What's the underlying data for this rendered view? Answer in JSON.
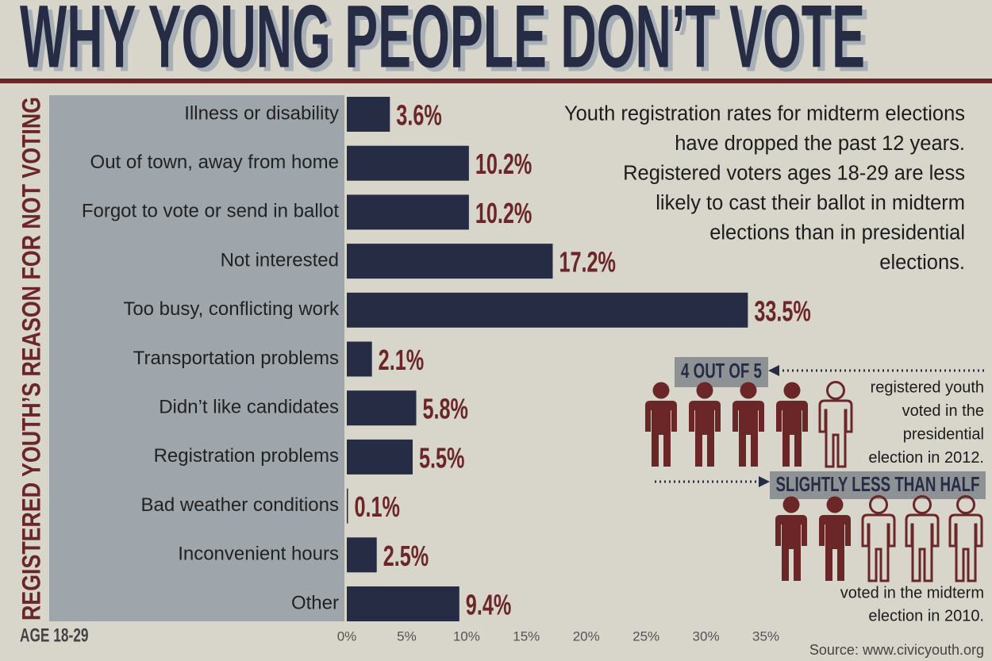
{
  "chart_data": {
    "type": "bar",
    "orientation": "horizontal",
    "title": "WHY YOUNG PEOPLE DON’T VOTE",
    "ylabel": "REGISTERED YOUTH’S REASON FOR NOT VOTING",
    "note": "AGE 18-29",
    "categories": [
      "Illness or disability",
      "Out of town, away from home",
      "Forgot to vote or send in ballot",
      "Not interested",
      "Too busy, conflicting work",
      "Transportation problems",
      "Didn’t like candidates",
      "Registration problems",
      "Bad weather conditions",
      "Inconvenient hours",
      "Other"
    ],
    "values": [
      3.6,
      10.2,
      10.2,
      17.2,
      33.5,
      2.1,
      5.8,
      5.5,
      0.1,
      2.5,
      9.4
    ],
    "value_labels": [
      "3.6%",
      "10.2%",
      "10.2%",
      "17.2%",
      "33.5%",
      "2.1%",
      "5.8%",
      "5.5%",
      "0.1%",
      "2.5%",
      "9.4%"
    ],
    "color": "#262c44",
    "label_color": "#6b2628",
    "xlim": [
      0,
      35
    ],
    "xticks": [
      {
        "value": 0,
        "label": "0%"
      },
      {
        "value": 5,
        "label": "5%"
      },
      {
        "value": 10,
        "label": "10%"
      },
      {
        "value": 15,
        "label": "15%"
      },
      {
        "value": 20,
        "label": "20%"
      },
      {
        "value": 25,
        "label": "25%"
      },
      {
        "value": 30,
        "label": "30%"
      },
      {
        "value": 35,
        "label": "35%"
      }
    ],
    "grid": false,
    "paragraph": [
      "Youth registration rates for midterm elections",
      "have dropped the past 12 years.",
      "Registered voters ages 18-29 are less",
      "likely to cast their ballot in midterm",
      "elections than in presidential",
      "elections."
    ],
    "callouts": [
      {
        "heading": "4 OUT OF 5",
        "text": [
          "registered youth",
          "voted in the",
          "presidential",
          "election in 2012."
        ]
      },
      {
        "heading": "SLIGHTLY LESS THAN HALF",
        "text": [
          "voted in the midterm",
          "election in 2010."
        ]
      }
    ],
    "source": "Source: www.civicyouth.org"
  }
}
